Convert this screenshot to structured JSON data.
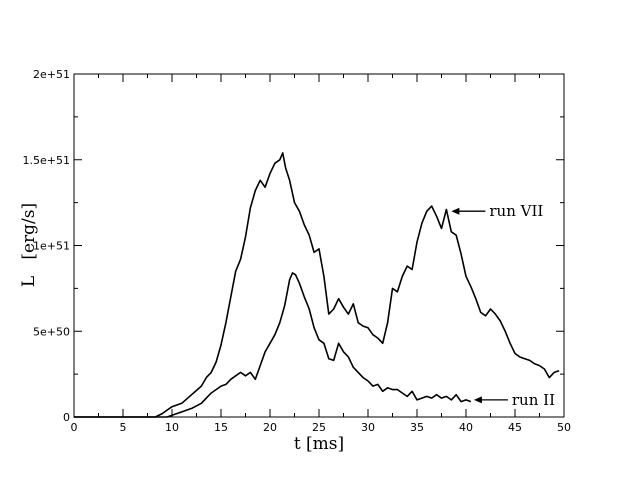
{
  "chart_data": {
    "type": "line",
    "xlabel": "t [ms]",
    "ylabel": "L   [erg/s]",
    "xlim": [
      0,
      50
    ],
    "ylim": [
      0,
      2e+51
    ],
    "xticks": [
      0,
      5,
      10,
      15,
      20,
      25,
      30,
      35,
      40,
      45,
      50
    ],
    "yticks": [
      {
        "value": 0,
        "label": "0"
      },
      {
        "value": 5e+50,
        "label": "5e+50"
      },
      {
        "value": 1e+51,
        "label": "1e+51"
      },
      {
        "value": 1.5e+51,
        "label": "1.5e+51"
      },
      {
        "value": 2e+51,
        "label": "2e+51"
      }
    ],
    "grid": false,
    "series": [
      {
        "name": "run VII",
        "x": [
          0,
          8.3,
          9,
          9.5,
          10,
          11,
          12,
          13,
          13.5,
          14,
          14.5,
          15,
          15.5,
          16,
          16.5,
          17,
          17.5,
          18,
          18.5,
          19,
          19.5,
          20,
          20.5,
          21,
          21.3,
          21.6,
          22,
          22.5,
          23,
          23.5,
          24,
          24.5,
          25,
          25.5,
          26,
          26.5,
          27,
          27.5,
          28,
          28.5,
          29,
          29.5,
          30,
          30.5,
          31,
          31.5,
          32,
          32.5,
          33,
          33.5,
          34,
          34.5,
          35,
          35.5,
          36,
          36.5,
          37,
          37.5,
          38,
          38.5,
          39,
          39.5,
          40,
          40.5,
          41,
          41.5,
          42,
          42.5,
          43,
          43.5,
          44,
          44.5,
          45,
          45.5,
          46,
          46.5,
          47,
          47.5,
          48,
          48.5,
          49,
          49.5
        ],
        "y": [
          0,
          0,
          2e+49,
          4e+49,
          6e+49,
          8e+49,
          1.3e+50,
          1.8e+50,
          2.3e+50,
          2.6e+50,
          3.2e+50,
          4.2e+50,
          5.5e+50,
          7e+50,
          8.5e+50,
          9.2e+50,
          1.05e+51,
          1.22e+51,
          1.32e+51,
          1.38e+51,
          1.34e+51,
          1.42e+51,
          1.48e+51,
          1.5e+51,
          1.54e+51,
          1.45e+51,
          1.38e+51,
          1.25e+51,
          1.2e+51,
          1.12e+51,
          1.06e+51,
          9.6e+50,
          9.8e+50,
          8.2e+50,
          6e+50,
          6.3e+50,
          6.9e+50,
          6.4e+50,
          6e+50,
          6.6e+50,
          5.5e+50,
          5.3e+50,
          5.2e+50,
          4.8e+50,
          4.6e+50,
          4.3e+50,
          5.5e+50,
          7.5e+50,
          7.3e+50,
          8.2e+50,
          8.8e+50,
          8.6e+50,
          1.02e+51,
          1.13e+51,
          1.2e+51,
          1.23e+51,
          1.17e+51,
          1.1e+51,
          1.21e+51,
          1.08e+51,
          1.06e+51,
          9.5e+50,
          8.2e+50,
          7.6e+50,
          6.9e+50,
          6.1e+50,
          5.9e+50,
          6.3e+50,
          6e+50,
          5.6e+50,
          5e+50,
          4.3e+50,
          3.7e+50,
          3.5e+50,
          3.4e+50,
          3.3e+50,
          3.1e+50,
          3e+50,
          2.8e+50,
          2.3e+50,
          2.6e+50,
          2.7e+50
        ]
      },
      {
        "name": "run II",
        "x": [
          0,
          9.5,
          10,
          11,
          12,
          13,
          13.5,
          14,
          14.5,
          15,
          15.5,
          16,
          16.5,
          17,
          17.5,
          18,
          18.5,
          19,
          19.5,
          20,
          20.5,
          21,
          21.5,
          22,
          22.3,
          22.6,
          23,
          23.5,
          24,
          24.5,
          25,
          25.5,
          26,
          26.5,
          27,
          27.5,
          28,
          28.5,
          29,
          29.5,
          30,
          30.5,
          31,
          31.5,
          32,
          32.5,
          33,
          33.5,
          34,
          34.5,
          35,
          35.5,
          36,
          36.5,
          37,
          37.5,
          38,
          38.5,
          39,
          39.5,
          40,
          40.5
        ],
        "y": [
          0,
          0,
          1e+49,
          3e+49,
          5e+49,
          8e+49,
          1.1e+50,
          1.4e+50,
          1.6e+50,
          1.8e+50,
          1.9e+50,
          2.2e+50,
          2.4e+50,
          2.6e+50,
          2.4e+50,
          2.6e+50,
          2.2e+50,
          3e+50,
          3.8e+50,
          4.3e+50,
          4.8e+50,
          5.5e+50,
          6.5e+50,
          8e+50,
          8.4e+50,
          8.3e+50,
          7.8e+50,
          7e+50,
          6.3e+50,
          5.2e+50,
          4.5e+50,
          4.3e+50,
          3.4e+50,
          3.3e+50,
          4.3e+50,
          3.8e+50,
          3.5e+50,
          2.9e+50,
          2.6e+50,
          2.3e+50,
          2.1e+50,
          1.8e+50,
          1.9e+50,
          1.5e+50,
          1.7e+50,
          1.6e+50,
          1.6e+50,
          1.4e+50,
          1.2e+50,
          1.5e+50,
          1e+50,
          1.1e+50,
          1.2e+50,
          1.1e+50,
          1.3e+50,
          1.1e+50,
          1.2e+50,
          1e+50,
          1.3e+50,
          9e+49,
          1e+50,
          9e+49
        ]
      }
    ],
    "annotations": [
      {
        "text": "run VII",
        "series": "run VII",
        "x": 38.2,
        "y": 1.2e+51
      },
      {
        "text": "run II",
        "series": "run II",
        "x": 40.5,
        "y": 1e+50
      }
    ]
  }
}
